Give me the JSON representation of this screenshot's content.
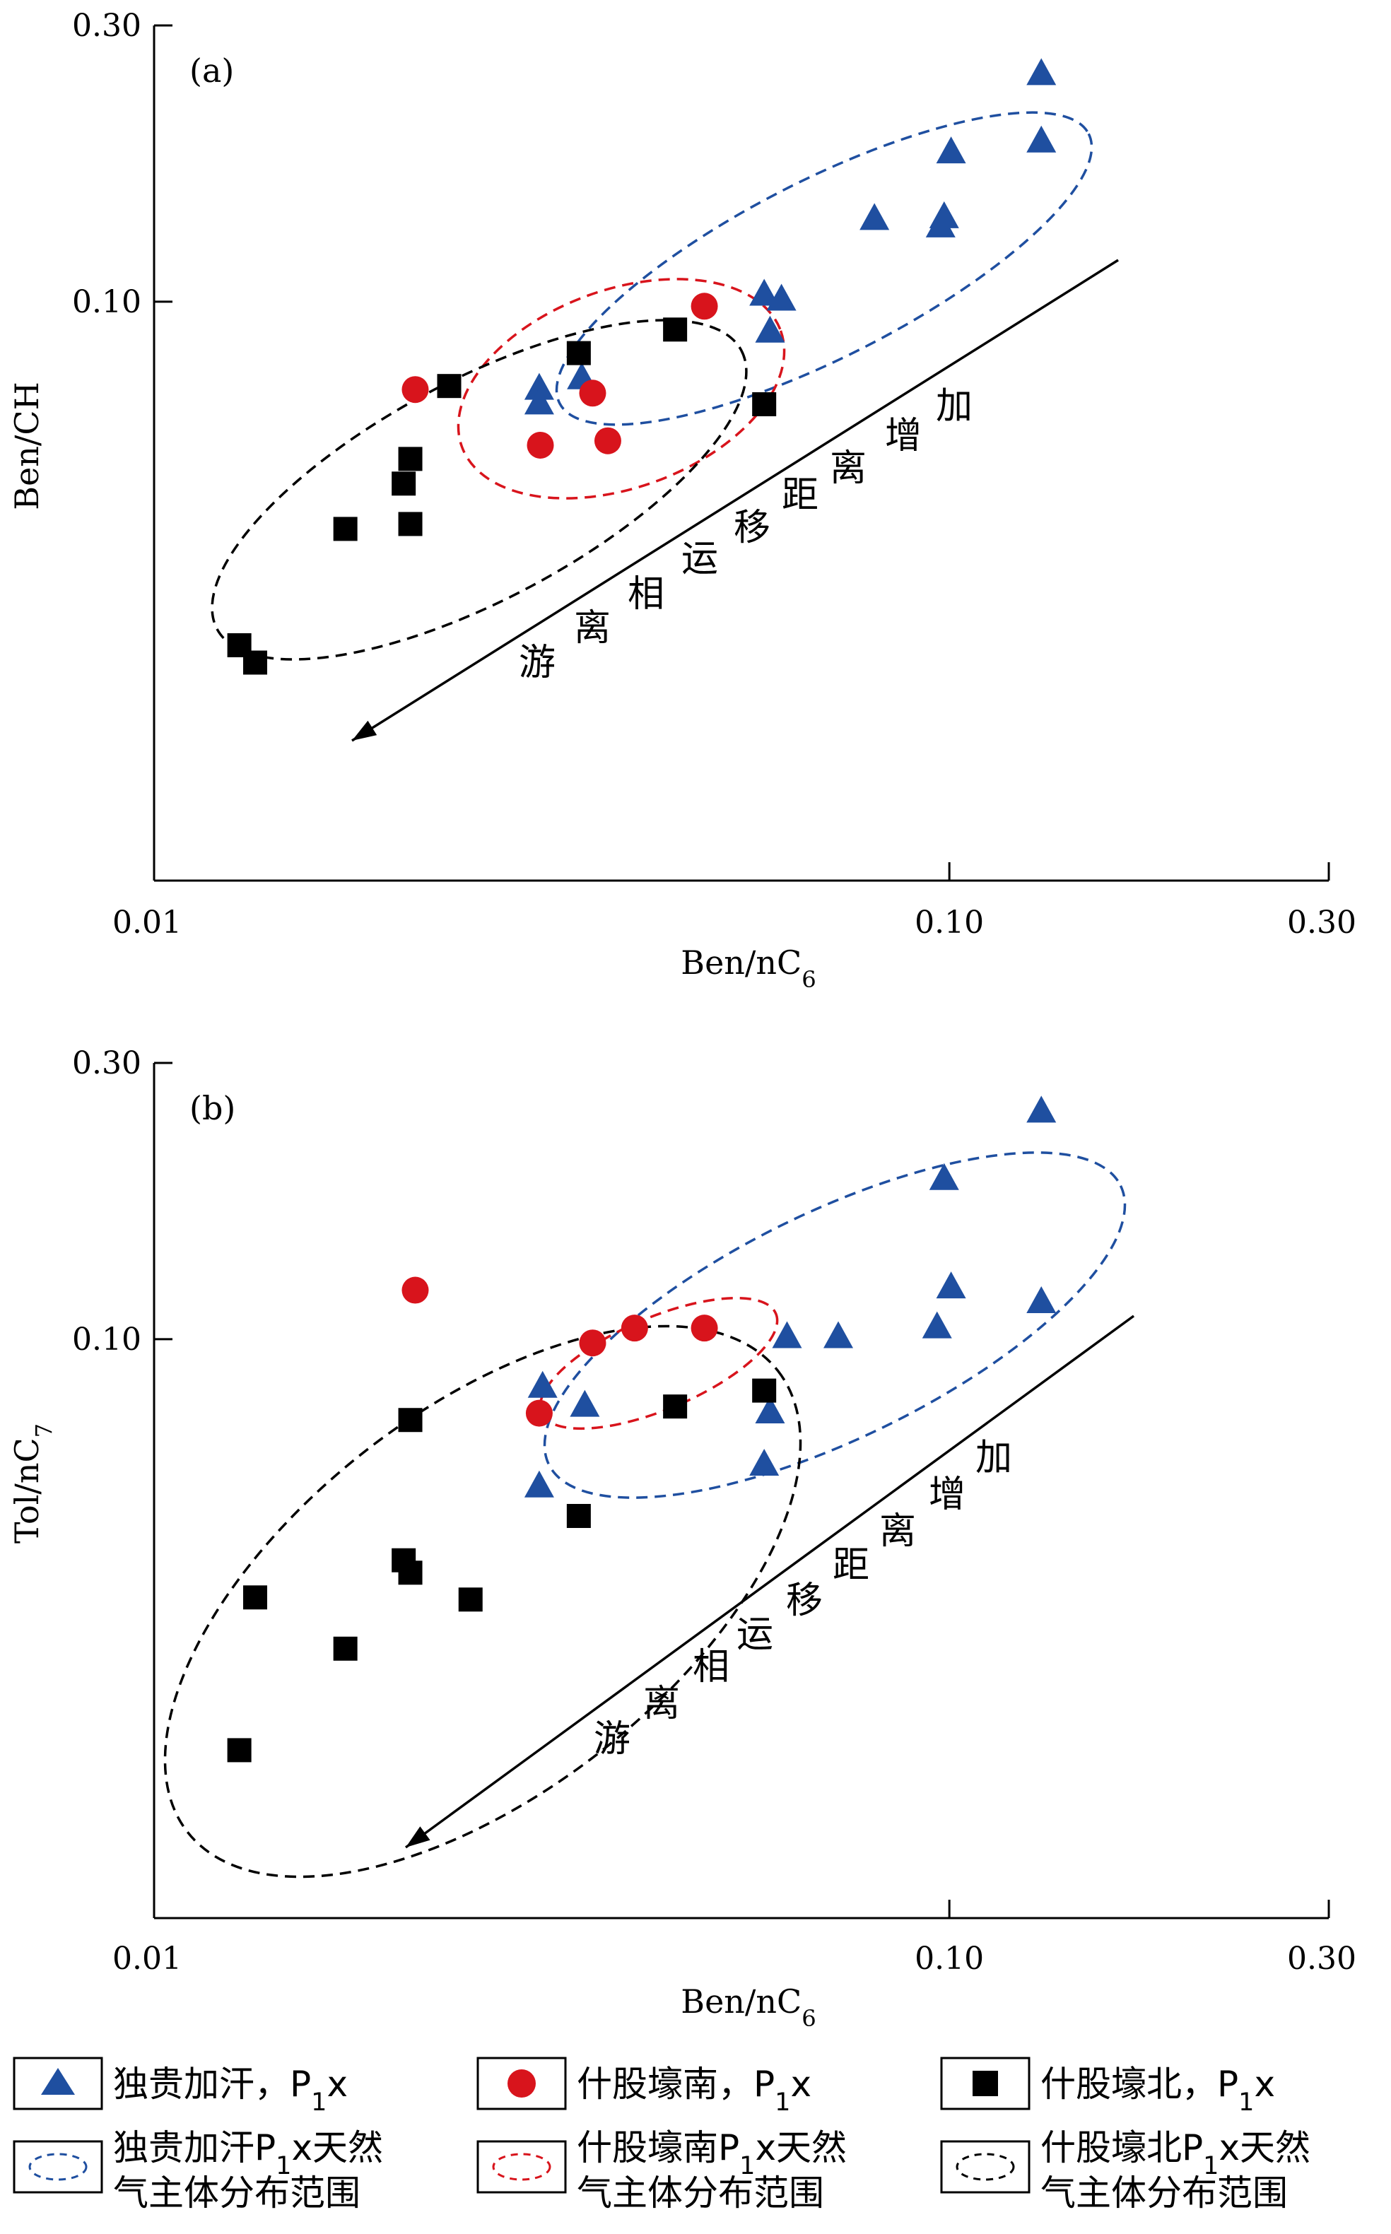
{
  "colors": {
    "triangle": "#1f4fa0",
    "circle": "#d8141c",
    "square": "#000000",
    "blue_ellipse": "#1f4fa0",
    "red_ellipse": "#d8141c",
    "black_ellipse": "#000000"
  },
  "chart_data": [
    {
      "type": "scatter",
      "panel_label": "(a)",
      "xlabel": "Ben/nC6",
      "ylabel": "Ben/CH",
      "x_scale": "log",
      "y_scale": "log",
      "xlim": [
        0.01,
        0.3
      ],
      "ylim": [
        0.01,
        0.3
      ],
      "x_ticks": [
        "0.01",
        "0.10",
        "0.30"
      ],
      "y_ticks": [
        "0.10",
        "0.30"
      ],
      "annotation": [
        "游",
        "离",
        "相",
        "运",
        "移",
        "距",
        "离",
        "增",
        "加"
      ],
      "series": [
        {
          "name": "独贵加汗，P1x",
          "marker": "triangle",
          "points": [
            [
              0.0305,
              0.0705
            ],
            [
              0.0305,
              0.0665
            ],
            [
              0.0345,
              0.0735
            ],
            [
              0.0585,
              0.1025
            ],
            [
              0.0615,
              0.1005
            ],
            [
              0.0595,
              0.0885
            ],
            [
              0.0805,
              0.1385
            ],
            [
              0.0975,
              0.1345
            ],
            [
              0.0985,
              0.1395
            ],
            [
              0.1005,
              0.1805
            ],
            [
              0.1305,
              0.1885
            ],
            [
              0.1305,
              0.2465
            ]
          ]
        },
        {
          "name": "什股壕南，P1x",
          "marker": "circle",
          "points": [
            [
              0.0213,
              0.0705
            ],
            [
              0.0306,
              0.0565
            ],
            [
              0.0356,
              0.0695
            ],
            [
              0.0372,
              0.0575
            ],
            [
              0.0492,
              0.0982
            ]
          ]
        },
        {
          "name": "什股壕北，P1x",
          "marker": "square",
          "points": [
            [
              0.0128,
              0.0255
            ],
            [
              0.0134,
              0.0238
            ],
            [
              0.0174,
              0.0405
            ],
            [
              0.0206,
              0.0485
            ],
            [
              0.021,
              0.0535
            ],
            [
              0.021,
              0.0413
            ],
            [
              0.0235,
              0.0715
            ],
            [
              0.0342,
              0.0815
            ],
            [
              0.0452,
              0.0895
            ],
            [
              0.0585,
              0.0665
            ]
          ]
        }
      ],
      "ellipses": [
        {
          "name": "独贵加汗P1x天然气主体分布范围",
          "color": "blue"
        },
        {
          "name": "什股壕南P1x天然气主体分布范围",
          "color": "red"
        },
        {
          "name": "什股壕北P1x天然气主体分布范围",
          "color": "black"
        }
      ]
    },
    {
      "type": "scatter",
      "panel_label": "(b)",
      "xlabel": "Ben/nC6",
      "ylabel": "Tol/nC7",
      "x_scale": "log",
      "y_scale": "log",
      "xlim": [
        0.01,
        0.3
      ],
      "ylim": [
        0.01,
        0.3
      ],
      "x_ticks": [
        "0.01",
        "0.10",
        "0.30"
      ],
      "y_ticks": [
        "0.10",
        "0.30"
      ],
      "annotation": [
        "游",
        "离",
        "相",
        "运",
        "移",
        "距",
        "离",
        "增",
        "加"
      ],
      "series": [
        {
          "name": "独贵加汗，P1x",
          "marker": "triangle",
          "points": [
            [
              0.0308,
              0.0825
            ],
            [
              0.0348,
              0.0765
            ],
            [
              0.0305,
              0.0555
            ],
            [
              0.0595,
              0.0745
            ],
            [
              0.0585,
              0.0605
            ],
            [
              0.0625,
              0.1005
            ],
            [
              0.0725,
              0.1005
            ],
            [
              0.0965,
              0.1045
            ],
            [
              0.1005,
              0.1225
            ],
            [
              0.0985,
              0.1885
            ],
            [
              0.1305,
              0.1155
            ],
            [
              0.1305,
              0.2465
            ]
          ]
        },
        {
          "name": "什股壕南，P1x",
          "marker": "circle",
          "points": [
            [
              0.0213,
              0.1215
            ],
            [
              0.0305,
              0.0745
            ],
            [
              0.0356,
              0.0985
            ],
            [
              0.0402,
              0.1045
            ],
            [
              0.0492,
              0.1045
            ]
          ]
        },
        {
          "name": "什股壕北，P1x",
          "marker": "square",
          "points": [
            [
              0.0128,
              0.0195
            ],
            [
              0.0134,
              0.0358
            ],
            [
              0.0174,
              0.0292
            ],
            [
              0.0206,
              0.0415
            ],
            [
              0.021,
              0.0725
            ],
            [
              0.021,
              0.0395
            ],
            [
              0.025,
              0.0355
            ],
            [
              0.0342,
              0.0495
            ],
            [
              0.0452,
              0.0765
            ],
            [
              0.0585,
              0.0815
            ]
          ]
        }
      ],
      "ellipses": [
        {
          "name": "独贵加汗P1x天然气主体分布范围",
          "color": "blue"
        },
        {
          "name": "什股壕南P1x天然气主体分布范围",
          "color": "red"
        },
        {
          "name": "什股壕北P1x天然气主体分布范围",
          "color": "black"
        }
      ]
    }
  ],
  "legend": {
    "items": [
      {
        "kind": "triangle",
        "text": "独贵加汗，P1x"
      },
      {
        "kind": "circle",
        "text": "什股壕南，P1x"
      },
      {
        "kind": "square",
        "text": "什股壕北，P1x"
      },
      {
        "kind": "blue_ellipse",
        "line1": "独贵加汗P1x天然",
        "line2": "气主体分布范围"
      },
      {
        "kind": "red_ellipse",
        "line1": "什股壕南P1x天然",
        "line2": "气主体分布范围"
      },
      {
        "kind": "black_ellipse",
        "line1": "什股壕北P1x天然",
        "line2": "气主体分布范围"
      }
    ]
  }
}
